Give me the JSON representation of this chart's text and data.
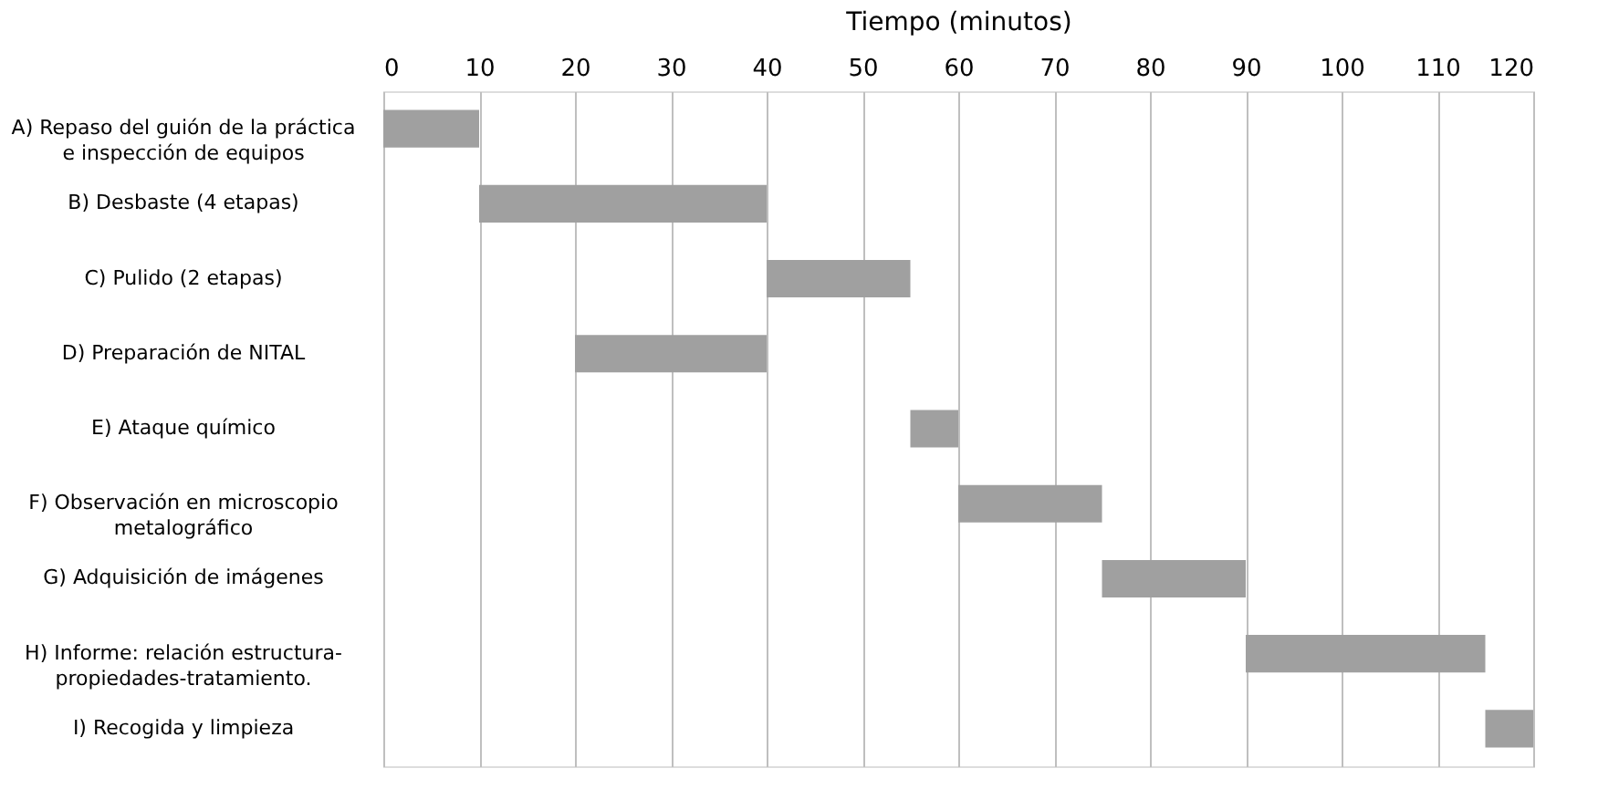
{
  "chart_data": {
    "type": "bar",
    "orientation": "horizontal",
    "xlabel": "Tiempo (minutos)",
    "categories": [
      "A) Repaso del guión de la práctica\ne inspección de equipos",
      "B) Desbaste (4 etapas)",
      "C) Pulido (2 etapas)",
      "D) Preparación de NITAL",
      "E) Ataque químico",
      "F) Observación en microscopio\nmetalográfico",
      "G) Adquisición de imágenes",
      "H) Informe: relación estructura-\npropiedades-tratamiento.",
      "I) Recogida y limpieza"
    ],
    "base": [
      0,
      10,
      40,
      20,
      55,
      60,
      75,
      90,
      115
    ],
    "values": [
      10,
      30,
      15,
      20,
      5,
      15,
      15,
      25,
      5
    ],
    "color": "#a0a0a0",
    "xlim": [
      0,
      120
    ],
    "xticks": [
      0,
      10,
      20,
      30,
      40,
      50,
      60,
      70,
      80,
      90,
      100,
      110,
      120
    ],
    "grid": "x"
  }
}
